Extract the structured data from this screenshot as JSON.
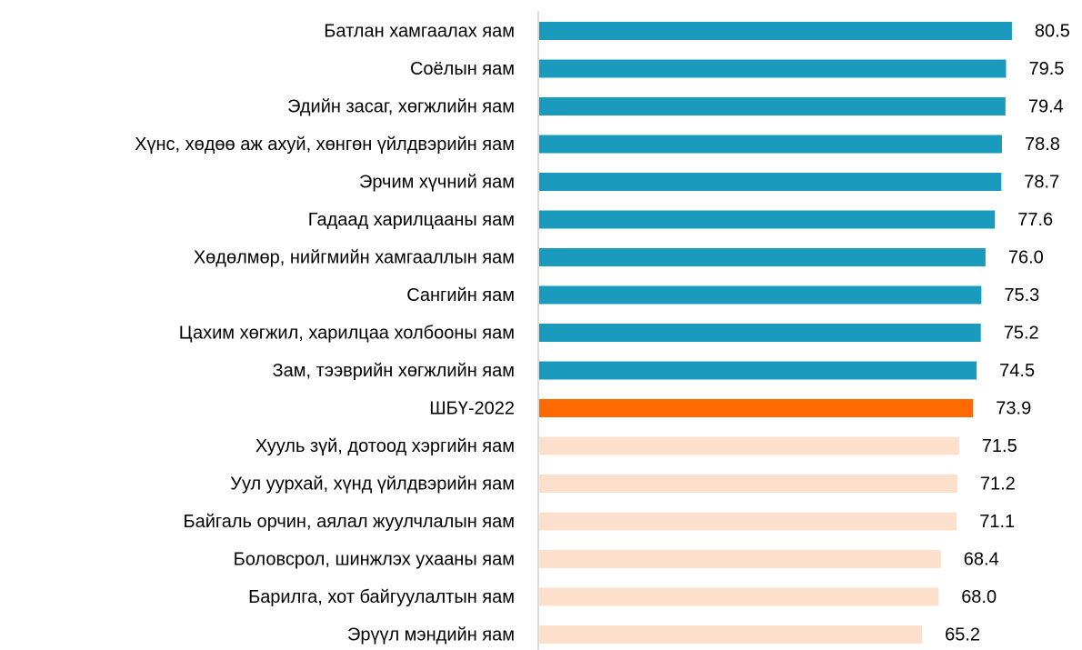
{
  "chart_data": {
    "type": "bar",
    "orientation": "horizontal",
    "categories": [
      "Батлан хамгаалах яам",
      "Соёлын яам",
      "Эдийн засаг, хөгжлийн яам",
      "Хүнс, хөдөө аж ахуй, хөнгөн үйлдвэрийн яам",
      "Эрчим хүчний яам",
      "Гадаад харилцааны яам",
      "Хөдөлмөр, нийгмийн хамгааллын яам",
      "Сангийн яам",
      "Цахим хөгжил, харилцаа холбооны яам",
      "Зам, тээврийн хөгжлийн яам",
      "ШБҮ-2022",
      "Хууль зүй, дотоод хэргийн яам",
      "Уул уурхай, хүнд үйлдвэрийн яам",
      "Байгаль орчин, аялал жуулчлалын яам",
      "Боловсрол, шинжлэх ухааны яам",
      "Барилга, хот байгуулалтын яам",
      "Эрүүл мэндийн яам"
    ],
    "values": [
      80.5,
      79.5,
      79.4,
      78.8,
      78.7,
      77.6,
      76,
      75.3,
      75.2,
      74.5,
      73.9,
      71.5,
      71.2,
      71.1,
      68.4,
      68,
      65.2
    ],
    "value_labels": [
      "80.5",
      "79.5",
      "79.4",
      "78.8",
      "78.7",
      "77.6",
      "76.0",
      "75.3",
      "75.2",
      "74.5",
      "73.9",
      "71.5",
      "71.2",
      "71.1",
      "68.4",
      "68.0",
      "65.2"
    ],
    "colors": [
      "#1a9bbd",
      "#1a9bbd",
      "#1a9bbd",
      "#1a9bbd",
      "#1a9bbd",
      "#1a9bbd",
      "#1a9bbd",
      "#1a9bbd",
      "#1a9bbd",
      "#1a9bbd",
      "#ff6a00",
      "#fde0cc",
      "#fde0cc",
      "#fde0cc",
      "#fde0cc",
      "#fde0cc",
      "#fde0cc"
    ],
    "xlim": [
      0,
      85
    ]
  }
}
